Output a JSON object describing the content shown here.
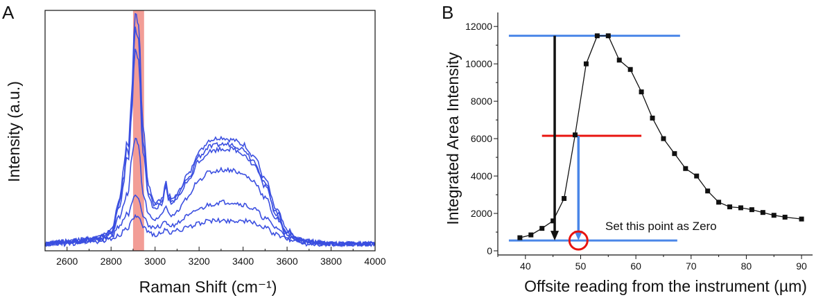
{
  "panel_a": {
    "label": "A",
    "chart_data": {
      "type": "line",
      "xlabel": "Raman Shift (cm⁻¹)",
      "ylabel": "Intensity (a.u.)",
      "xlim": [
        2500,
        4000
      ],
      "x_ticks": [
        "2600",
        "2800",
        "3000",
        "3200",
        "3400",
        "3600",
        "3800",
        "4000"
      ],
      "y_ticks": [],
      "highlight_band": {
        "from": 2900,
        "to": 2950,
        "color": "#f08c84"
      },
      "series_color": "#3b4fe0",
      "x": [
        2500,
        2600,
        2700,
        2750,
        2800,
        2840,
        2860,
        2870,
        2880,
        2890,
        2910,
        2925,
        2945,
        2970,
        3000,
        3030,
        3050,
        3060,
        3080,
        3100,
        3150,
        3200,
        3250,
        3300,
        3350,
        3400,
        3450,
        3500,
        3550,
        3600,
        3650,
        3700,
        3800,
        4000
      ],
      "series": [
        {
          "values": [
            0.0,
            0.01,
            0.02,
            0.03,
            0.06,
            0.2,
            0.34,
            0.44,
            0.42,
            0.6,
            1.0,
            0.95,
            0.5,
            0.25,
            0.18,
            0.19,
            0.27,
            0.21,
            0.19,
            0.22,
            0.3,
            0.4,
            0.45,
            0.46,
            0.45,
            0.43,
            0.38,
            0.28,
            0.15,
            0.06,
            0.02,
            0.01,
            0.0,
            0.0
          ]
        },
        {
          "values": [
            0.0,
            0.01,
            0.02,
            0.03,
            0.05,
            0.18,
            0.3,
            0.41,
            0.38,
            0.55,
            0.93,
            0.88,
            0.45,
            0.22,
            0.16,
            0.18,
            0.26,
            0.2,
            0.18,
            0.21,
            0.28,
            0.38,
            0.42,
            0.43,
            0.43,
            0.41,
            0.36,
            0.26,
            0.14,
            0.05,
            0.02,
            0.01,
            0.0,
            0.0
          ]
        },
        {
          "values": [
            0.0,
            0.01,
            0.02,
            0.03,
            0.05,
            0.16,
            0.28,
            0.38,
            0.36,
            0.52,
            0.84,
            0.8,
            0.4,
            0.2,
            0.15,
            0.17,
            0.24,
            0.19,
            0.17,
            0.2,
            0.27,
            0.36,
            0.4,
            0.41,
            0.41,
            0.39,
            0.34,
            0.25,
            0.13,
            0.05,
            0.02,
            0.01,
            0.0,
            0.0
          ]
        },
        {
          "values": [
            0.0,
            0.01,
            0.02,
            0.02,
            0.04,
            0.12,
            0.18,
            0.22,
            0.22,
            0.35,
            0.46,
            0.42,
            0.22,
            0.13,
            0.1,
            0.12,
            0.17,
            0.13,
            0.12,
            0.14,
            0.2,
            0.28,
            0.31,
            0.32,
            0.32,
            0.3,
            0.27,
            0.2,
            0.11,
            0.04,
            0.02,
            0.01,
            0.0,
            0.0
          ]
        },
        {
          "values": [
            0.0,
            0.01,
            0.01,
            0.02,
            0.03,
            0.08,
            0.11,
            0.13,
            0.13,
            0.17,
            0.22,
            0.2,
            0.12,
            0.08,
            0.07,
            0.08,
            0.1,
            0.08,
            0.08,
            0.09,
            0.12,
            0.15,
            0.17,
            0.18,
            0.18,
            0.17,
            0.15,
            0.11,
            0.07,
            0.03,
            0.01,
            0.01,
            0.0,
            0.0
          ]
        },
        {
          "values": [
            0.0,
            0.0,
            0.01,
            0.01,
            0.02,
            0.04,
            0.06,
            0.07,
            0.07,
            0.09,
            0.12,
            0.11,
            0.07,
            0.05,
            0.04,
            0.05,
            0.06,
            0.05,
            0.05,
            0.06,
            0.07,
            0.09,
            0.1,
            0.1,
            0.1,
            0.1,
            0.09,
            0.07,
            0.04,
            0.02,
            0.01,
            0.0,
            0.0,
            0.0
          ]
        }
      ]
    }
  },
  "panel_b": {
    "label": "B",
    "chart_data": {
      "type": "line",
      "xlabel": "Offsite reading from the instrument (µm)",
      "ylabel": "Integrated Area Intensity",
      "xlim": [
        35,
        92
      ],
      "ylim": [
        0,
        12600
      ],
      "x_ticks": [
        "40",
        "50",
        "60",
        "70",
        "80",
        "90"
      ],
      "y_ticks": [
        "0",
        "2000",
        "4000",
        "6000",
        "8000",
        "10000",
        "12000"
      ],
      "x": [
        39,
        41,
        43,
        45,
        47,
        49,
        51,
        53,
        55,
        57,
        59,
        61,
        63,
        65,
        67,
        69,
        71,
        73,
        75,
        77,
        79,
        81,
        83,
        85,
        87,
        90
      ],
      "y": [
        700,
        850,
        1200,
        1600,
        2800,
        6200,
        10000,
        11500,
        11500,
        10200,
        9700,
        8500,
        7100,
        6000,
        5200,
        4400,
        4000,
        3200,
        2600,
        2350,
        2300,
        2200,
        2050,
        1900,
        1800,
        1700
      ],
      "series_color": "#111111",
      "annotation": "Set this point as Zero",
      "guide_lines": {
        "max_level": {
          "y": 11500,
          "x_from": 37,
          "x_to": 68,
          "color": "#4a86e8"
        },
        "half_level": {
          "y": 6150,
          "x_from": 43,
          "x_to": 61,
          "color": "#e8140f"
        },
        "baseline": {
          "y": 550,
          "x_from": 37,
          "x_to": 67.5,
          "color": "#4a86e8"
        },
        "black_arrow": {
          "x": 45.3,
          "y_from": 11500,
          "y_to": 550,
          "color": "#111111"
        },
        "blue_arrow": {
          "x": 49.6,
          "y_from": 6150,
          "y_to": 550,
          "color": "#4a86e8"
        },
        "zero_marker": {
          "x": 49.6,
          "y": 550,
          "color": "#e8140f"
        }
      }
    }
  }
}
